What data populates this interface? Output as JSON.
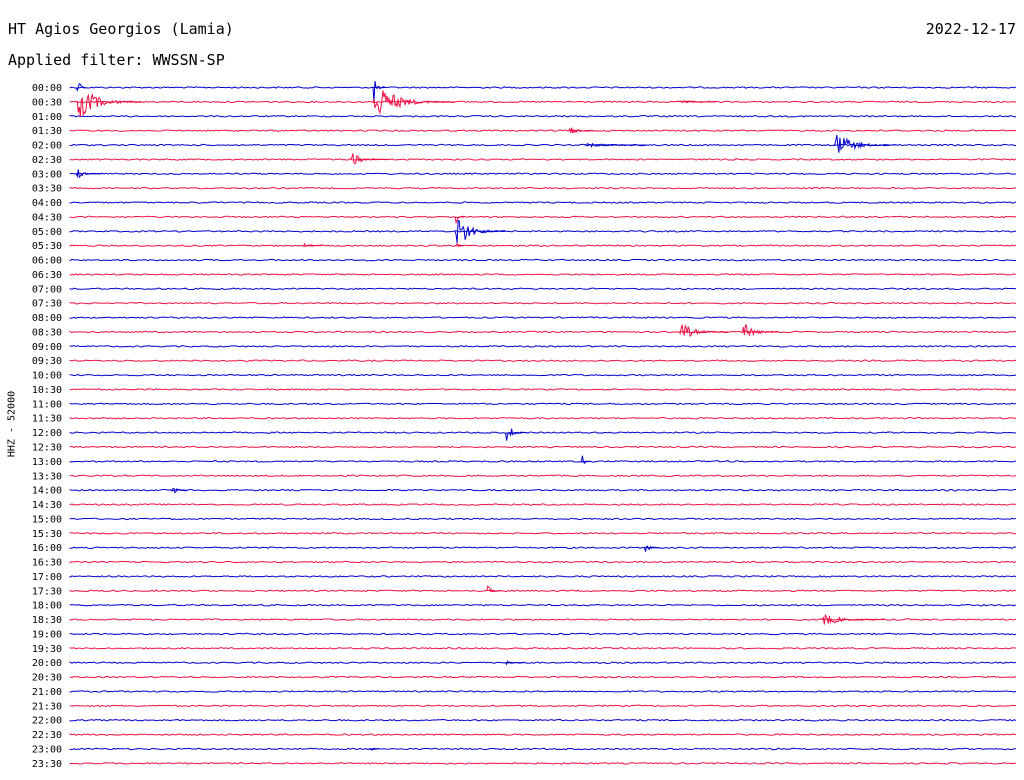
{
  "header": {
    "station": "HT Agios Georgios (Lamia)",
    "date": "2022-12-17",
    "filter": "Applied filter: WWSSN-SP",
    "channel": "HHZ - 52000"
  },
  "colors": {
    "even_row": "#0000cc",
    "odd_row": "#ee1144"
  },
  "chart_data": {
    "type": "helicorder",
    "title": "HT Agios Georgios (Lamia)",
    "date": "2022-12-17",
    "filter": "WWSSN-SP",
    "ylabel": "HHZ - 52000",
    "row_minutes": 30,
    "rows": [
      "00:00",
      "00:30",
      "01:00",
      "01:30",
      "02:00",
      "02:30",
      "03:00",
      "03:30",
      "04:00",
      "04:30",
      "05:00",
      "05:30",
      "06:00",
      "06:30",
      "07:00",
      "07:30",
      "08:00",
      "08:30",
      "09:00",
      "09:30",
      "10:00",
      "10:30",
      "11:00",
      "11:30",
      "12:00",
      "12:30",
      "13:00",
      "13:30",
      "14:00",
      "14:30",
      "15:00",
      "15:30",
      "16:00",
      "16:30",
      "17:00",
      "17:30",
      "18:00",
      "18:30",
      "19:00",
      "19:30",
      "20:00",
      "20:30",
      "21:00",
      "21:30",
      "22:00",
      "22:30",
      "23:00",
      "23:30"
    ],
    "events": [
      {
        "row": "00:00",
        "minute": 0.2,
        "amplitude": 1.0,
        "duration_min": 0.3
      },
      {
        "row": "00:30",
        "minute": 0.2,
        "amplitude": 1.0,
        "duration_min": 2.1
      },
      {
        "row": "00:00",
        "minute": 9.6,
        "amplitude": 1.0,
        "duration_min": 0.4
      },
      {
        "row": "00:30",
        "minute": 9.6,
        "amplitude": 1.0,
        "duration_min": 2.6
      },
      {
        "row": "00:30",
        "minute": 19.3,
        "amplitude": 0.12,
        "duration_min": 1.2
      },
      {
        "row": "01:30",
        "minute": 15.8,
        "amplitude": 0.25,
        "duration_min": 0.8
      },
      {
        "row": "02:00",
        "minute": 16.3,
        "amplitude": 0.15,
        "duration_min": 2.0
      },
      {
        "row": "02:00",
        "minute": 24.2,
        "amplitude": 0.7,
        "duration_min": 2.0
      },
      {
        "row": "02:30",
        "minute": 8.9,
        "amplitude": 0.35,
        "duration_min": 1.2
      },
      {
        "row": "03:00",
        "minute": 0.2,
        "amplitude": 0.3,
        "duration_min": 0.8
      },
      {
        "row": "04:30",
        "minute": 12.2,
        "amplitude": 0.45,
        "duration_min": 0.3
      },
      {
        "row": "05:00",
        "minute": 12.2,
        "amplitude": 1.0,
        "duration_min": 1.6
      },
      {
        "row": "05:30",
        "minute": 12.2,
        "amplitude": 0.45,
        "duration_min": 0.3
      },
      {
        "row": "05:30",
        "minute": 7.4,
        "amplitude": 0.15,
        "duration_min": 0.6
      },
      {
        "row": "06:30",
        "minute": 16.5,
        "amplitude": 0.25,
        "duration_min": 0.1
      },
      {
        "row": "08:30",
        "minute": 19.3,
        "amplitude": 0.5,
        "duration_min": 1.6
      },
      {
        "row": "08:30",
        "minute": 21.3,
        "amplitude": 0.5,
        "duration_min": 1.2
      },
      {
        "row": "12:00",
        "minute": 13.8,
        "amplitude": 0.6,
        "duration_min": 0.7
      },
      {
        "row": "13:00",
        "minute": 16.2,
        "amplitude": 0.8,
        "duration_min": 0.3
      },
      {
        "row": "14:00",
        "minute": 3.2,
        "amplitude": 0.35,
        "duration_min": 0.5
      },
      {
        "row": "16:00",
        "minute": 18.2,
        "amplitude": 0.35,
        "duration_min": 0.5
      },
      {
        "row": "17:30",
        "minute": 13.2,
        "amplitude": 0.3,
        "duration_min": 0.5
      },
      {
        "row": "18:30",
        "minute": 23.8,
        "amplitude": 0.35,
        "duration_min": 2.0
      },
      {
        "row": "20:00",
        "minute": 13.8,
        "amplitude": 0.12,
        "duration_min": 0.6
      },
      {
        "row": "23:00",
        "minute": 9.5,
        "amplitude": 0.2,
        "duration_min": 0.3
      }
    ]
  }
}
